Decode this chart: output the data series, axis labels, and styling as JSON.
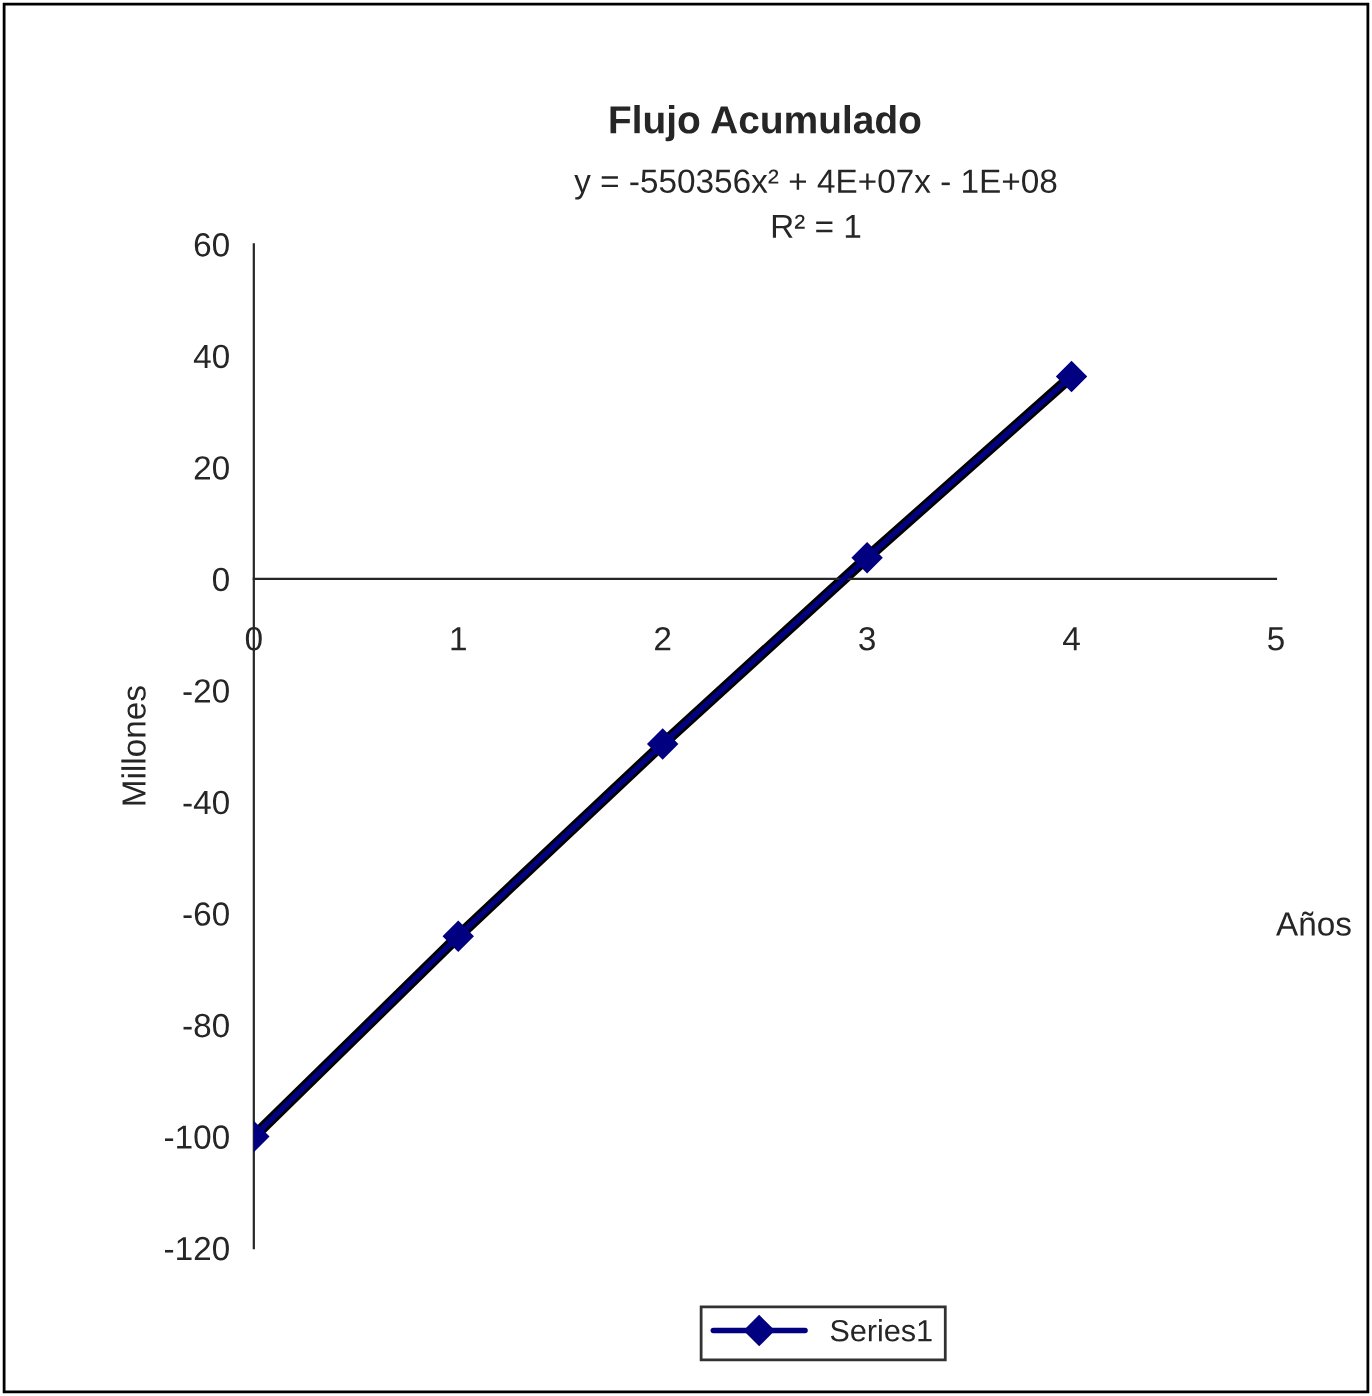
{
  "chart_data": {
    "type": "line",
    "title": "Flujo Acumulado",
    "xlabel": "Años",
    "ylabel": "Millones",
    "annotations": [
      "y = -550356x² + 4E+07x - 1E+08",
      "R² = 1"
    ],
    "x": [
      0,
      1,
      2,
      3,
      4
    ],
    "series": [
      {
        "name": "Series1",
        "color": "#000080",
        "values": [
          -100,
          -64.1,
          -29.6,
          3.8,
          36.3
        ],
        "marker": "diamond",
        "line_style": "solid"
      },
      {
        "type": "line",
        "color": "#000000",
        "x": [
          0,
          1,
          2,
          3,
          4
        ],
        "values": [
          -100,
          -64.1,
          -29.6,
          3.8,
          36.3
        ],
        "marker": "none",
        "line_style": "solid"
      }
    ],
    "xlim": [
      0,
      5
    ],
    "xticks": [
      0,
      1,
      2,
      3,
      4,
      5
    ],
    "ylim": [
      -120,
      60
    ],
    "yticks": [
      -120,
      -100,
      -80,
      -60,
      -40,
      -20,
      0,
      20,
      40,
      60
    ],
    "grid": false,
    "legend": "bottom"
  }
}
